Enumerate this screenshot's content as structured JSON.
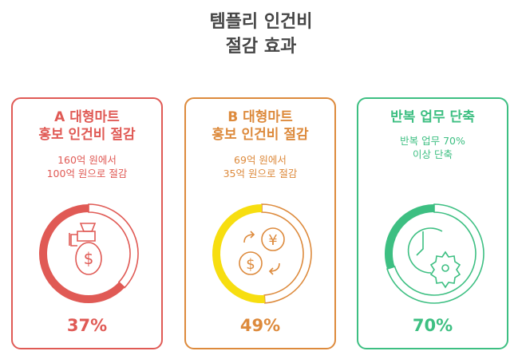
{
  "title": {
    "line1": "템플리 인건비",
    "line2": "절감 효과"
  },
  "cards": [
    {
      "heading1": "A 대형마트",
      "heading2": "홍보 인건비 절감",
      "sub1": "160억 원에서",
      "sub2": "100억 원으로 절감",
      "percent_label": "37%",
      "percent": 37,
      "color": "#e05a55",
      "fill_color": "#e05a55",
      "icon": "money-bag-icon"
    },
    {
      "heading1": "B 대형마트",
      "heading2": "홍보 인건비 절감",
      "sub1": "69억 원에서",
      "sub2": "35억 원으로 절감",
      "percent_label": "49%",
      "percent": 49,
      "color": "#dd8a3c",
      "fill_color": "#f7de10",
      "icon": "currency-exchange-icon"
    },
    {
      "heading1": "반복 업무 단축",
      "heading2": "",
      "sub1": "반복 업무 70%",
      "sub2": "이상 단축",
      "percent_label": "70%",
      "percent": 70,
      "color": "#3dbf82",
      "fill_color": "#3dbf82",
      "icon": "clock-gear-icon"
    }
  ]
}
